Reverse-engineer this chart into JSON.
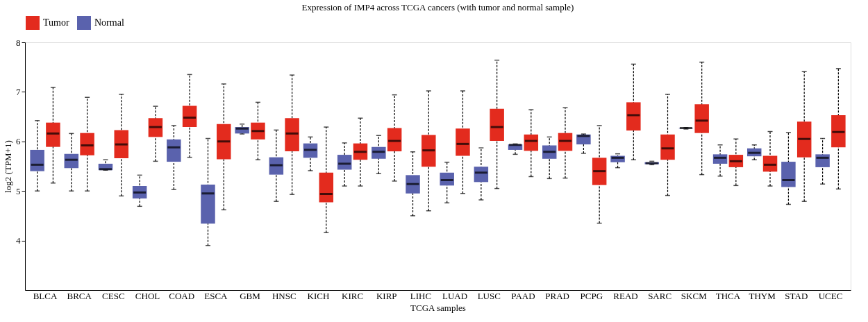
{
  "chart_data": {
    "type": "box",
    "title": "Expression of IMP4 across TCGA cancers (with tumor and normal sample)",
    "xlabel": "TCGA samples",
    "ylabel": "log2 (TPM+1)",
    "categories": [
      "BLCA",
      "BRCA",
      "CESC",
      "CHOL",
      "COAD",
      "ESCA",
      "GBM",
      "HNSC",
      "KICH",
      "KIRC",
      "KIRP",
      "LIHC",
      "LUAD",
      "LUSC",
      "PAAD",
      "PRAD",
      "PCPG",
      "READ",
      "SARC",
      "SKCM",
      "THCA",
      "THYM",
      "STAD",
      "UCEC"
    ],
    "ylim": [
      3,
      8
    ],
    "yticks": [
      4,
      5,
      6,
      7,
      8
    ],
    "grid": false,
    "legend": "top",
    "series": [
      {
        "name": "Normal",
        "color": "#5a62ad",
        "boxes": [
          {
            "low": 5.0,
            "q1": 5.4,
            "median": 5.53,
            "q3": 5.83,
            "high": 6.42
          },
          {
            "low": 5.0,
            "q1": 5.46,
            "median": 5.63,
            "q3": 5.75,
            "high": 6.16
          },
          {
            "low": 5.42,
            "q1": 5.42,
            "median": 5.44,
            "q3": 5.55,
            "high": 5.63
          },
          {
            "low": 4.69,
            "q1": 4.85,
            "median": 4.97,
            "q3": 5.1,
            "high": 5.32
          },
          {
            "low": 5.03,
            "q1": 5.59,
            "median": 5.88,
            "q3": 6.04,
            "high": 6.32
          },
          {
            "low": 3.9,
            "q1": 4.34,
            "median": 4.95,
            "q3": 5.13,
            "high": 6.06
          },
          {
            "low": 6.15,
            "q1": 6.16,
            "median": 6.26,
            "q3": 6.29,
            "high": 6.35
          },
          {
            "low": 4.79,
            "q1": 5.33,
            "median": 5.52,
            "q3": 5.68,
            "high": 6.23
          },
          {
            "low": 5.41,
            "q1": 5.67,
            "median": 5.83,
            "q3": 5.96,
            "high": 6.09
          },
          {
            "low": 5.1,
            "q1": 5.43,
            "median": 5.55,
            "q3": 5.73,
            "high": 5.97
          },
          {
            "low": 5.35,
            "q1": 5.65,
            "median": 5.79,
            "q3": 5.89,
            "high": 6.12
          },
          {
            "low": 4.5,
            "q1": 4.95,
            "median": 5.14,
            "q3": 5.32,
            "high": 5.79
          },
          {
            "low": 4.76,
            "q1": 5.11,
            "median": 5.22,
            "q3": 5.37,
            "high": 5.58
          },
          {
            "low": 4.82,
            "q1": 5.18,
            "median": 5.37,
            "q3": 5.49,
            "high": 5.87
          },
          {
            "low": 5.74,
            "q1": 5.83,
            "median": 5.93,
            "q3": 5.94,
            "high": 5.95
          },
          {
            "low": 5.25,
            "q1": 5.65,
            "median": 5.79,
            "q3": 5.92,
            "high": 6.09
          },
          {
            "low": 5.76,
            "q1": 5.94,
            "median": 6.11,
            "q3": 6.14,
            "high": 6.15
          },
          {
            "low": 5.47,
            "q1": 5.58,
            "median": 5.67,
            "q3": 5.71,
            "high": 5.75
          },
          {
            "low": 5.53,
            "q1": 5.54,
            "median": 5.56,
            "q3": 5.58,
            "high": 5.6
          },
          {
            "low": 6.25,
            "q1": 6.26,
            "median": 6.27,
            "q3": 6.27,
            "high": 6.28
          },
          {
            "low": 5.3,
            "q1": 5.55,
            "median": 5.67,
            "q3": 5.74,
            "high": 5.93
          },
          {
            "low": 5.63,
            "q1": 5.7,
            "median": 5.77,
            "q3": 5.86,
            "high": 5.93
          },
          {
            "low": 4.73,
            "q1": 5.08,
            "median": 5.22,
            "q3": 5.59,
            "high": 6.18
          },
          {
            "low": 5.14,
            "q1": 5.48,
            "median": 5.67,
            "q3": 5.74,
            "high": 6.06
          }
        ]
      },
      {
        "name": "Tumor",
        "color": "#e32b1e",
        "boxes": [
          {
            "low": 5.16,
            "q1": 5.89,
            "median": 6.16,
            "q3": 6.38,
            "high": 7.09
          },
          {
            "low": 5.0,
            "q1": 5.72,
            "median": 5.92,
            "q3": 6.17,
            "high": 6.89
          },
          {
            "low": 4.9,
            "q1": 5.66,
            "median": 5.94,
            "q3": 6.23,
            "high": 6.95
          },
          {
            "low": 5.6,
            "q1": 6.09,
            "median": 6.29,
            "q3": 6.47,
            "high": 6.71
          },
          {
            "low": 5.68,
            "q1": 6.29,
            "median": 6.48,
            "q3": 6.72,
            "high": 7.35
          },
          {
            "low": 4.62,
            "q1": 5.64,
            "median": 6.0,
            "q3": 6.35,
            "high": 7.16
          },
          {
            "low": 5.63,
            "q1": 6.04,
            "median": 6.21,
            "q3": 6.38,
            "high": 6.79
          },
          {
            "low": 4.93,
            "q1": 5.8,
            "median": 6.16,
            "q3": 6.47,
            "high": 7.34
          },
          {
            "low": 4.16,
            "q1": 4.77,
            "median": 4.94,
            "q3": 5.37,
            "high": 6.29
          },
          {
            "low": 5.1,
            "q1": 5.63,
            "median": 5.79,
            "q3": 5.96,
            "high": 6.47
          },
          {
            "low": 5.2,
            "q1": 5.8,
            "median": 6.01,
            "q3": 6.27,
            "high": 6.94
          },
          {
            "low": 4.6,
            "q1": 5.49,
            "median": 5.82,
            "q3": 6.13,
            "high": 7.02
          },
          {
            "low": 4.95,
            "q1": 5.71,
            "median": 5.95,
            "q3": 6.26,
            "high": 7.02
          },
          {
            "low": 5.05,
            "q1": 6.01,
            "median": 6.29,
            "q3": 6.66,
            "high": 7.64
          },
          {
            "low": 5.29,
            "q1": 5.81,
            "median": 6.01,
            "q3": 6.14,
            "high": 6.64
          },
          {
            "low": 5.26,
            "q1": 5.81,
            "median": 6.01,
            "q3": 6.17,
            "high": 6.68
          },
          {
            "low": 4.35,
            "q1": 5.12,
            "median": 5.4,
            "q3": 5.67,
            "high": 6.32
          },
          {
            "low": 5.63,
            "q1": 6.22,
            "median": 6.53,
            "q3": 6.79,
            "high": 7.56
          },
          {
            "low": 4.91,
            "q1": 5.63,
            "median": 5.86,
            "q3": 6.14,
            "high": 6.95
          },
          {
            "low": 5.33,
            "q1": 6.17,
            "median": 6.42,
            "q3": 6.75,
            "high": 7.6
          },
          {
            "low": 5.11,
            "q1": 5.48,
            "median": 5.6,
            "q3": 5.73,
            "high": 6.05
          },
          {
            "low": 5.1,
            "q1": 5.39,
            "median": 5.53,
            "q3": 5.71,
            "high": 6.2
          },
          {
            "low": 4.79,
            "q1": 5.68,
            "median": 6.05,
            "q3": 6.4,
            "high": 7.41
          },
          {
            "low": 5.04,
            "q1": 5.88,
            "median": 6.19,
            "q3": 6.53,
            "high": 7.47
          }
        ]
      }
    ]
  }
}
